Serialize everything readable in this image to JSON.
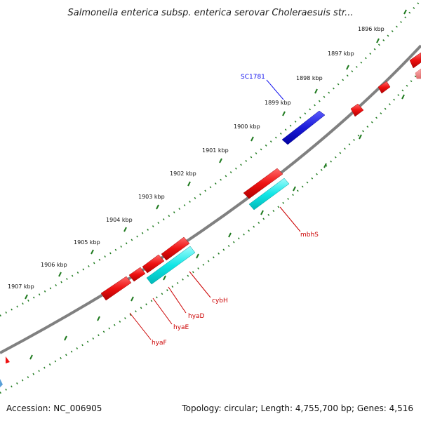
{
  "title": "Salmonella enterica subsp. enterica serovar Choleraesuis str...",
  "ticks": [
    "1896 kbp",
    "1897 kbp",
    "1898 kbp",
    "1899 kbp",
    "1900 kbp",
    "1901 kbp",
    "1902 kbp",
    "1903 kbp",
    "1904 kbp",
    "1905 kbp",
    "1906 kbp",
    "1907 kbp"
  ],
  "genes": [
    {
      "label": "SC1781",
      "color": "#1010ee"
    },
    {
      "label": "mbhS",
      "color": "#cc0000"
    },
    {
      "label": "cybH",
      "color": "#cc0000"
    },
    {
      "label": "hyaD",
      "color": "#cc0000"
    },
    {
      "label": "hyaE",
      "color": "#cc0000"
    },
    {
      "label": "hyaF",
      "color": "#cc0000"
    }
  ],
  "colors": {
    "backbone": "#808080",
    "forward_feature": "#ee1111",
    "forward_feature_light": "#f08080",
    "blue_feature": "#1a1ad8",
    "cyan_feature": "#11e6e6",
    "tick": "#1f7a1f"
  },
  "footer": {
    "accession": "Accession: NC_006905",
    "stats": "Topology: circular; Length: 4,755,700 bp; Genes: 4,516"
  }
}
